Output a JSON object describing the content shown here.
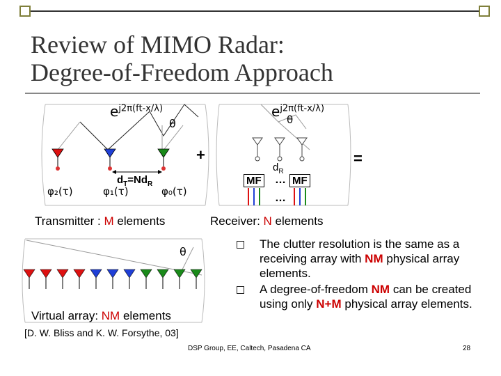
{
  "slide": {
    "title_line1": "Review of MIMO Radar:",
    "title_line2": "Degree-of-Freedom Approach",
    "page_number": "28",
    "footer": "DSP Group, EE, Caltech, Pasadena CA",
    "reference": "[D. W. Bliss and K. W. Forsythe, 03]"
  },
  "transmitter": {
    "wave_base": "e",
    "wave_exp": "j2π(ft-x/λ)",
    "theta": "θ",
    "phi2": "φ₂(τ)",
    "phi1": "φ₁(τ)",
    "phi0": "φ₀(τ)",
    "dt_main": "d",
    "dt_sub": "T",
    "dt_mid": "=Nd",
    "dt_sub2": "R",
    "caption_prefix": "Transmitter : ",
    "caption_highlight": "M",
    "caption_suffix": " elements"
  },
  "operators": {
    "plus": "+",
    "equals": "="
  },
  "receiver": {
    "wave_base": "e",
    "wave_exp": "j2π(ft-x/λ)",
    "theta": "θ",
    "dr_main": "d",
    "dr_sub": "R",
    "mf_left": "MF",
    "mf_right": "MF",
    "dots_mid": "…",
    "dots_below": "…",
    "caption_prefix": "Receiver: ",
    "caption_highlight": "N",
    "caption_suffix": " elements"
  },
  "virtual": {
    "theta": "θ",
    "caption_prefix": "Virtual array: ",
    "caption_highlight": "NM",
    "caption_suffix": " elements"
  },
  "bullets": {
    "b1_part1": "The clutter resolution is the same as a receiving array with ",
    "b1_highlight": "NM",
    "b1_part2": " physical array elements.",
    "b2_part1": "A degree-of-freedom ",
    "b2_highlight1": "NM",
    "b2_part2": " can be created using only ",
    "b2_highlight2": "N+M",
    "b2_part3": " physical array elements."
  },
  "colors": {
    "accent_red": "#cc0000",
    "accent_blue": "#1f3fd6",
    "accent_green": "#1a8a1a",
    "corner_box": "#7f7f3a"
  },
  "icons": {
    "corner_left": "checkbox-square-icon",
    "corner_right": "checkbox-square-icon",
    "bullet": "hollow-square-bullet-icon"
  }
}
